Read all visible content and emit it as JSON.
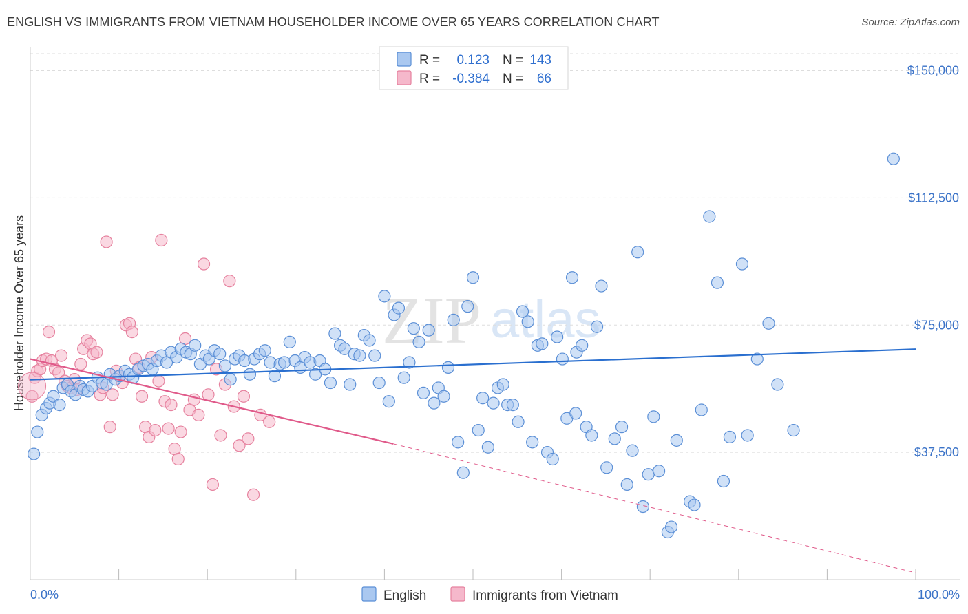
{
  "header": {
    "title": "ENGLISH VS IMMIGRANTS FROM VIETNAM HOUSEHOLDER INCOME OVER 65 YEARS CORRELATION CHART",
    "source": "Source: ZipAtlas.com"
  },
  "watermark": {
    "zip": "ZIP",
    "atlas": "atlas"
  },
  "stats": {
    "english": {
      "r_label": "R =",
      "r_value": "0.123",
      "n_label": "N =",
      "n_value": "143"
    },
    "vietnam": {
      "r_label": "R =",
      "r_value": "-0.384",
      "n_label": "N =",
      "n_value": "66"
    }
  },
  "legend": {
    "english": "English",
    "vietnam": "Immigrants from Vietnam"
  },
  "colors": {
    "english_fill": "#aac8f0",
    "english_stroke": "#5b8fd6",
    "english_line": "#2a6fcf",
    "vietnam_fill": "#f5b8cb",
    "vietnam_stroke": "#e6829f",
    "vietnam_line": "#e05a8a",
    "grid": "#dddddd",
    "tick_text": "#3b73c8"
  },
  "chart_data": {
    "type": "scatter",
    "title": "ENGLISH VS IMMIGRANTS FROM VIETNAM HOUSEHOLDER INCOME OVER 65 YEARS CORRELATION CHART",
    "xlabel": "",
    "ylabel": "Householder Income Over 65 years",
    "xlim": [
      0,
      100
    ],
    "ylim": [
      0,
      157000
    ],
    "x_tick_labels": [
      "0.0%",
      "100.0%"
    ],
    "y_ticks": [
      37500,
      75000,
      112500,
      150000
    ],
    "y_tick_labels": [
      "$37,500",
      "$75,000",
      "$112,500",
      "$150,000"
    ],
    "series": [
      {
        "name": "English",
        "r": 0.123,
        "n": 143,
        "trend": {
          "x": [
            0,
            100
          ],
          "y": [
            58900,
            67900
          ],
          "style": "solid"
        },
        "points": [
          [
            0.4,
            37000
          ],
          [
            0.8,
            43500
          ],
          [
            1.3,
            48500
          ],
          [
            1.8,
            50500
          ],
          [
            2.2,
            52000
          ],
          [
            2.6,
            54000
          ],
          [
            3.3,
            51500
          ],
          [
            3.7,
            56500
          ],
          [
            4.2,
            57500
          ],
          [
            4.6,
            55500
          ],
          [
            5.1,
            54500
          ],
          [
            5.6,
            57000
          ],
          [
            6.0,
            56000
          ],
          [
            6.5,
            55500
          ],
          [
            7.0,
            57000
          ],
          [
            7.6,
            59500
          ],
          [
            8.1,
            58000
          ],
          [
            8.6,
            57500
          ],
          [
            9.0,
            60500
          ],
          [
            9.6,
            59000
          ],
          [
            10.1,
            60000
          ],
          [
            10.7,
            61500
          ],
          [
            11.2,
            60500
          ],
          [
            11.6,
            59500
          ],
          [
            12.2,
            62000
          ],
          [
            12.8,
            63000
          ],
          [
            13.3,
            63500
          ],
          [
            13.8,
            62000
          ],
          [
            14.3,
            64500
          ],
          [
            14.8,
            66000
          ],
          [
            15.4,
            64000
          ],
          [
            15.9,
            67000
          ],
          [
            16.5,
            65500
          ],
          [
            17.0,
            68000
          ],
          [
            17.6,
            67000
          ],
          [
            18.1,
            66500
          ],
          [
            18.6,
            69000
          ],
          [
            19.2,
            63500
          ],
          [
            19.8,
            66000
          ],
          [
            20.2,
            65000
          ],
          [
            20.8,
            67500
          ],
          [
            21.4,
            66500
          ],
          [
            22.0,
            63000
          ],
          [
            22.6,
            59000
          ],
          [
            23.1,
            65000
          ],
          [
            23.6,
            66000
          ],
          [
            24.2,
            64500
          ],
          [
            24.8,
            60500
          ],
          [
            25.3,
            65000
          ],
          [
            25.9,
            66500
          ],
          [
            26.5,
            67500
          ],
          [
            27.1,
            64000
          ],
          [
            27.6,
            60000
          ],
          [
            28.2,
            63500
          ],
          [
            28.7,
            64000
          ],
          [
            29.3,
            70000
          ],
          [
            29.9,
            64500
          ],
          [
            30.5,
            62500
          ],
          [
            31.0,
            65500
          ],
          [
            31.6,
            64000
          ],
          [
            32.2,
            60500
          ],
          [
            32.7,
            64500
          ],
          [
            33.3,
            62000
          ],
          [
            33.9,
            58000
          ],
          [
            34.4,
            72500
          ],
          [
            35.0,
            69000
          ],
          [
            35.5,
            68000
          ],
          [
            36.1,
            57500
          ],
          [
            36.6,
            66500
          ],
          [
            37.2,
            66000
          ],
          [
            37.7,
            72000
          ],
          [
            38.3,
            70500
          ],
          [
            38.9,
            66000
          ],
          [
            39.4,
            58000
          ],
          [
            40.0,
            83500
          ],
          [
            40.5,
            52500
          ],
          [
            41.1,
            78000
          ],
          [
            41.6,
            80000
          ],
          [
            42.2,
            59500
          ],
          [
            42.8,
            64000
          ],
          [
            43.3,
            74000
          ],
          [
            43.9,
            70000
          ],
          [
            44.4,
            55000
          ],
          [
            45.0,
            73500
          ],
          [
            45.6,
            52000
          ],
          [
            46.1,
            56500
          ],
          [
            46.7,
            54000
          ],
          [
            47.2,
            62500
          ],
          [
            47.8,
            76500
          ],
          [
            48.3,
            40500
          ],
          [
            48.9,
            31500
          ],
          [
            49.4,
            80500
          ],
          [
            50.0,
            89000
          ],
          [
            50.6,
            44000
          ],
          [
            51.1,
            53500
          ],
          [
            51.7,
            39000
          ],
          [
            52.3,
            52000
          ],
          [
            52.8,
            56500
          ],
          [
            53.4,
            57500
          ],
          [
            53.9,
            51500
          ],
          [
            54.5,
            51500
          ],
          [
            55.1,
            46500
          ],
          [
            55.6,
            79000
          ],
          [
            56.2,
            76000
          ],
          [
            56.7,
            40500
          ],
          [
            57.3,
            69000
          ],
          [
            57.8,
            69500
          ],
          [
            58.4,
            37500
          ],
          [
            59.0,
            35500
          ],
          [
            59.5,
            71500
          ],
          [
            60.1,
            65000
          ],
          [
            60.6,
            47500
          ],
          [
            61.2,
            89000
          ],
          [
            61.7,
            67000
          ],
          [
            62.3,
            69000
          ],
          [
            62.8,
            45000
          ],
          [
            63.4,
            42500
          ],
          [
            64.0,
            74500
          ],
          [
            64.5,
            86500
          ],
          [
            65.1,
            33000
          ],
          [
            61.6,
            49000
          ],
          [
            66.0,
            41500
          ],
          [
            66.8,
            45000
          ],
          [
            67.4,
            28000
          ],
          [
            68.0,
            38000
          ],
          [
            68.6,
            96500
          ],
          [
            69.2,
            21500
          ],
          [
            69.8,
            31000
          ],
          [
            70.4,
            48000
          ],
          [
            71.0,
            32000
          ],
          [
            72.0,
            14000
          ],
          [
            72.4,
            15500
          ],
          [
            73.0,
            41000
          ],
          [
            74.5,
            23000
          ],
          [
            75.0,
            22000
          ],
          [
            75.8,
            50000
          ],
          [
            76.7,
            107000
          ],
          [
            77.6,
            87500
          ],
          [
            78.3,
            29000
          ],
          [
            79.0,
            42000
          ],
          [
            80.4,
            93000
          ],
          [
            81.0,
            42500
          ],
          [
            82.1,
            65000
          ],
          [
            83.4,
            75500
          ],
          [
            84.4,
            57500
          ],
          [
            86.2,
            44000
          ],
          [
            97.5,
            124000
          ]
        ]
      },
      {
        "name": "Immigrants from Vietnam",
        "r": -0.384,
        "n": 66,
        "trend": {
          "x": [
            0,
            41
          ],
          "y": [
            65000,
            40000
          ],
          "style": "solid",
          "extension": {
            "x": [
              41,
              100
            ],
            "y": [
              40000,
              2000
            ],
            "style": "dashed"
          }
        },
        "points": [
          [
            0.2,
            54000
          ],
          [
            0.5,
            59500
          ],
          [
            0.8,
            61500
          ],
          [
            1.1,
            62000
          ],
          [
            1.4,
            64500
          ],
          [
            1.8,
            65000
          ],
          [
            2.1,
            73000
          ],
          [
            2.4,
            64500
          ],
          [
            2.8,
            62000
          ],
          [
            3.2,
            61000
          ],
          [
            3.5,
            66000
          ],
          [
            3.9,
            58500
          ],
          [
            4.2,
            57000
          ],
          [
            4.6,
            56500
          ],
          [
            5.0,
            59000
          ],
          [
            5.3,
            56000
          ],
          [
            5.7,
            63500
          ],
          [
            6.0,
            68000
          ],
          [
            6.4,
            70500
          ],
          [
            6.8,
            69500
          ],
          [
            7.1,
            66500
          ],
          [
            7.5,
            67000
          ],
          [
            7.9,
            54500
          ],
          [
            8.2,
            56500
          ],
          [
            8.6,
            99500
          ],
          [
            9.0,
            45000
          ],
          [
            9.3,
            54500
          ],
          [
            9.7,
            61500
          ],
          [
            10.1,
            60000
          ],
          [
            10.4,
            58000
          ],
          [
            10.8,
            75000
          ],
          [
            11.2,
            75500
          ],
          [
            11.5,
            73000
          ],
          [
            11.9,
            65000
          ],
          [
            12.3,
            62500
          ],
          [
            12.6,
            54000
          ],
          [
            13.0,
            45000
          ],
          [
            13.4,
            42000
          ],
          [
            13.7,
            65500
          ],
          [
            14.1,
            44000
          ],
          [
            14.5,
            58500
          ],
          [
            14.8,
            100000
          ],
          [
            15.2,
            52500
          ],
          [
            15.6,
            44500
          ],
          [
            15.9,
            51500
          ],
          [
            16.3,
            38500
          ],
          [
            16.7,
            35500
          ],
          [
            17.0,
            43500
          ],
          [
            17.5,
            71000
          ],
          [
            18.0,
            50000
          ],
          [
            18.5,
            53000
          ],
          [
            19.0,
            48500
          ],
          [
            19.6,
            93000
          ],
          [
            20.1,
            54500
          ],
          [
            20.6,
            28000
          ],
          [
            21.0,
            62000
          ],
          [
            21.5,
            42500
          ],
          [
            22.0,
            57500
          ],
          [
            22.5,
            88000
          ],
          [
            23.0,
            51000
          ],
          [
            23.6,
            39500
          ],
          [
            24.1,
            54000
          ],
          [
            24.6,
            41500
          ],
          [
            25.2,
            25000
          ],
          [
            26.0,
            48500
          ],
          [
            27.0,
            46500
          ]
        ]
      }
    ]
  }
}
